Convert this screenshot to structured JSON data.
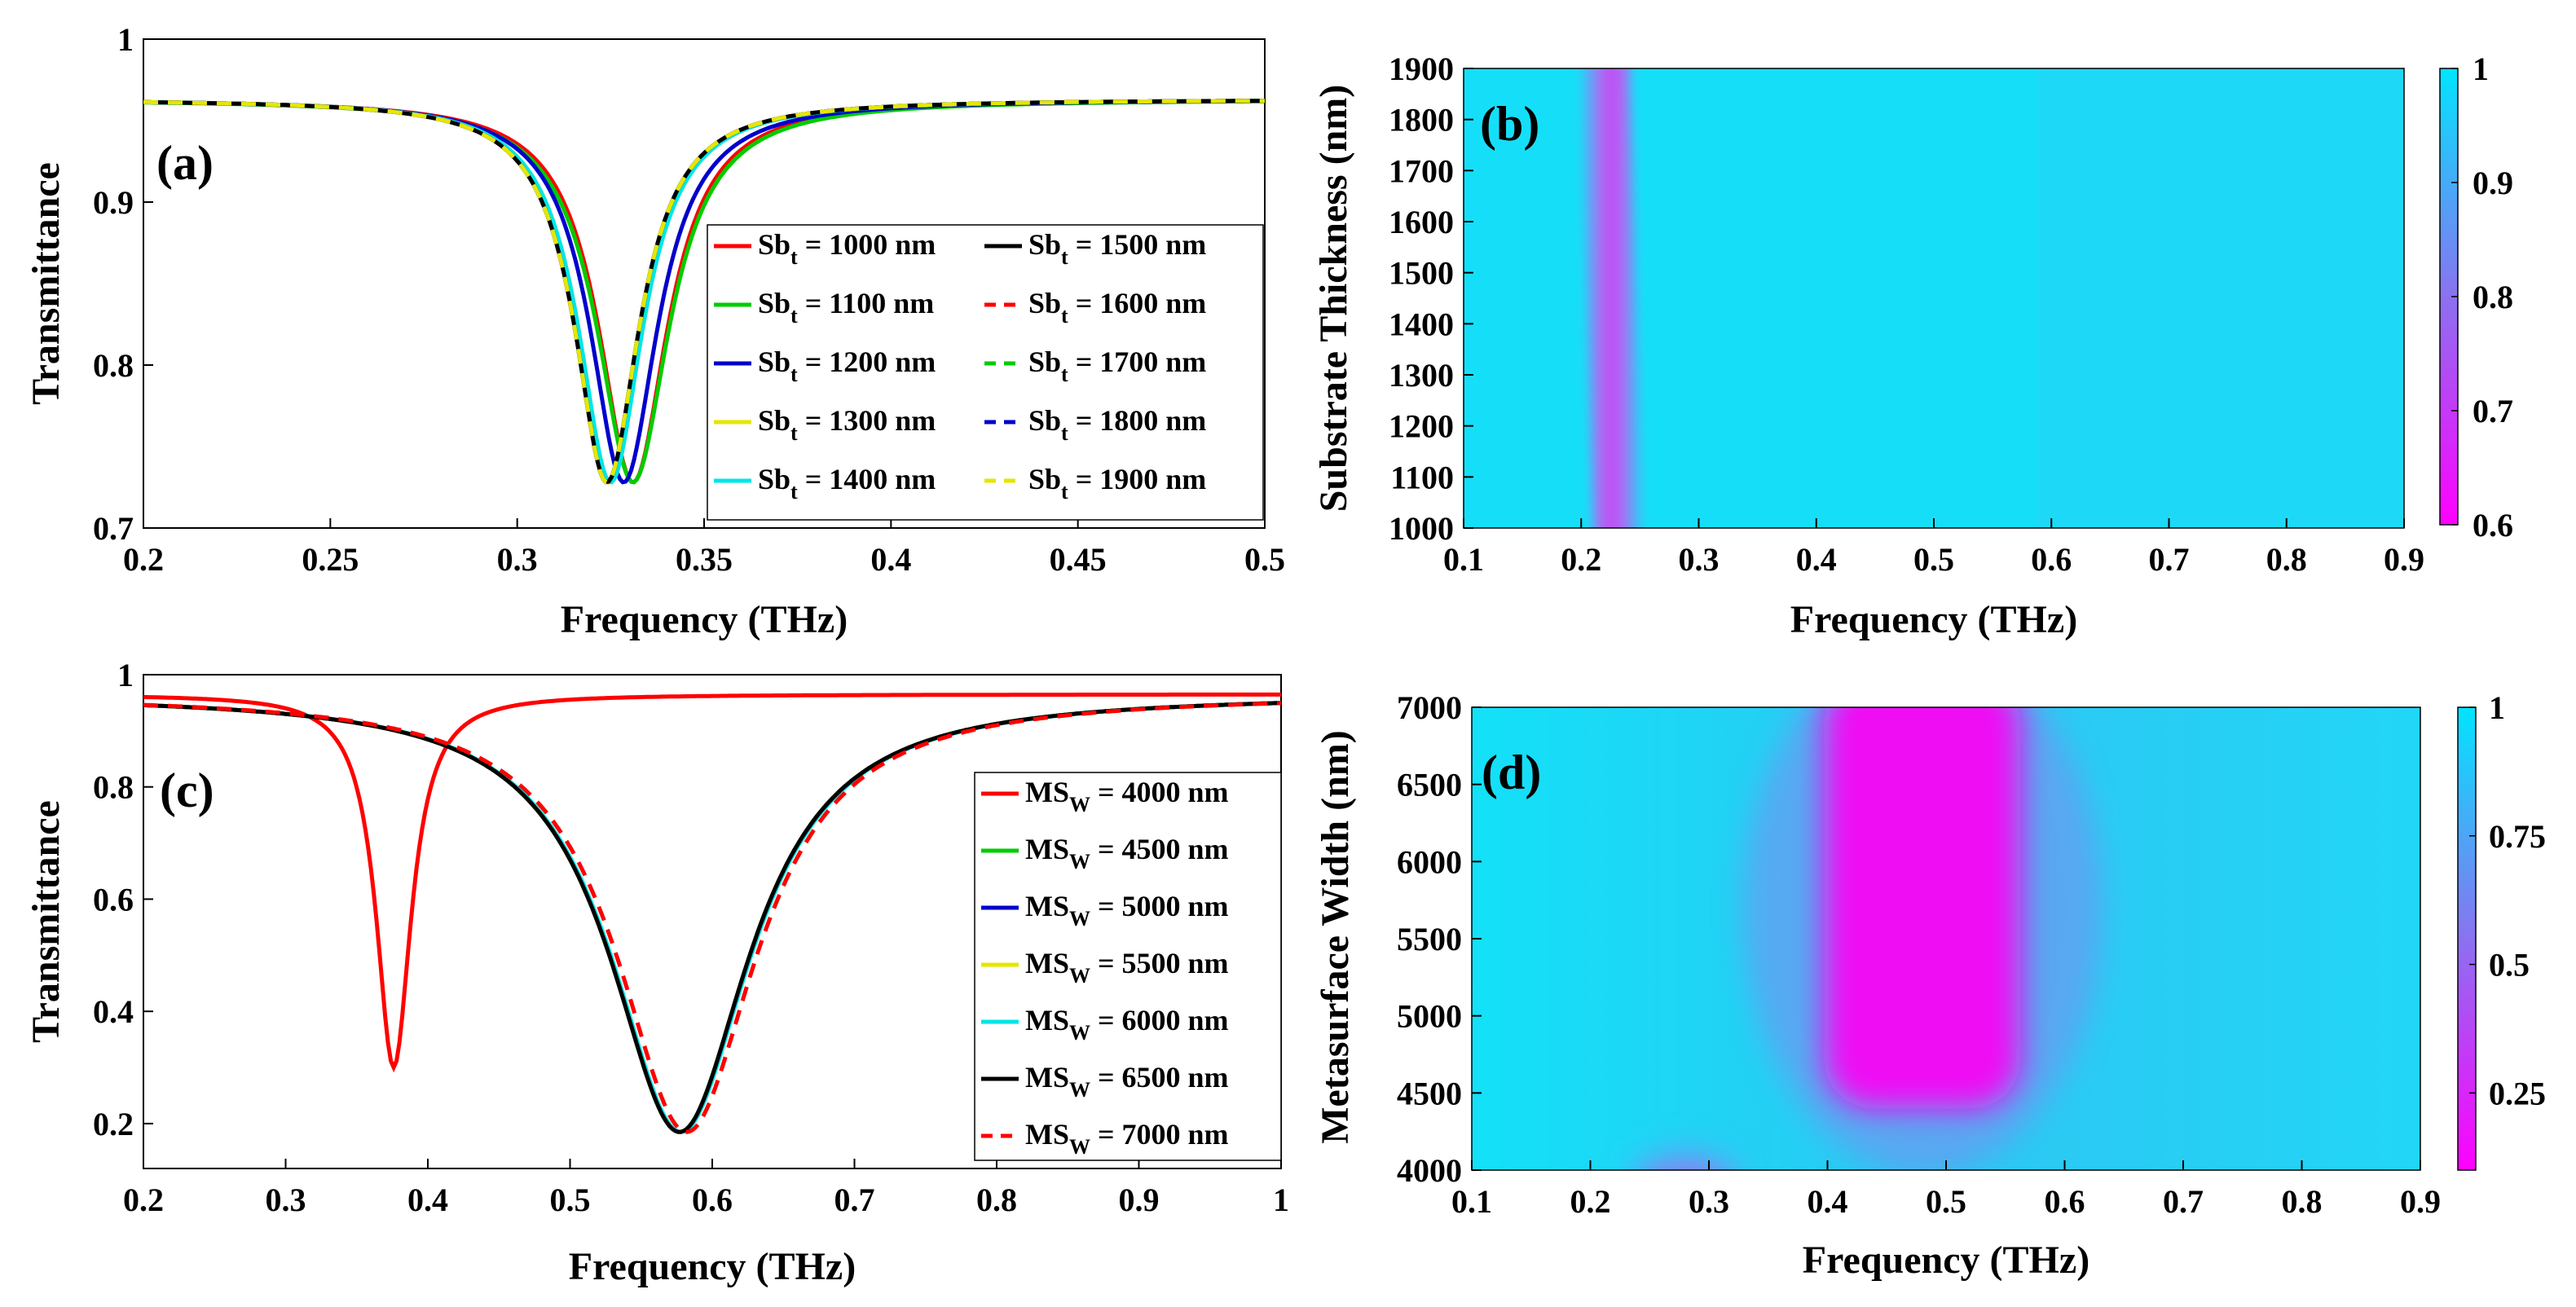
{
  "chart_data": [
    {
      "panel": "(a)",
      "type": "line",
      "xlabel": "Frequency (THz)",
      "ylabel": "Transmittance",
      "xlim": [
        0.2,
        0.5
      ],
      "ylim": [
        0.7,
        1.0
      ],
      "xticks": [
        "0.2",
        "0.25",
        "0.3",
        "0.35",
        "0.4",
        "0.45",
        "0.5"
      ],
      "yticks": [
        "0.7",
        "0.8",
        "0.9",
        "1"
      ],
      "baseline": 0.963,
      "depth": 0.235,
      "series": [
        {
          "prefix": "Sb",
          "sub": "t",
          "rest": " = 1000 nm",
          "color": "#ff0000",
          "dash": false,
          "f0": 0.331,
          "w": 0.0225
        },
        {
          "prefix": "Sb",
          "sub": "t",
          "rest": " = 1100 nm",
          "color": "#00cc00",
          "dash": false,
          "f0": 0.331,
          "w": 0.0235
        },
        {
          "prefix": "Sb",
          "sub": "t",
          "rest": " = 1200 nm",
          "color": "#0000cc",
          "dash": false,
          "f0": 0.3285,
          "w": 0.022
        },
        {
          "prefix": "Sb",
          "sub": "t",
          "rest": " = 1300 nm",
          "color": "#e6e600",
          "dash": false,
          "f0": 0.3245,
          "w": 0.021
        },
        {
          "prefix": "Sb",
          "sub": "t",
          "rest": " = 1400 nm",
          "color": "#00e6e6",
          "dash": false,
          "f0": 0.325,
          "w": 0.021
        },
        {
          "prefix": "Sb",
          "sub": "t",
          "rest": " = 1500 nm",
          "color": "#000000",
          "dash": false,
          "f0": 0.324,
          "w": 0.021
        },
        {
          "prefix": "Sb",
          "sub": "t",
          "rest": " = 1600 nm",
          "color": "#ff0000",
          "dash": true,
          "f0": 0.324,
          "w": 0.021
        },
        {
          "prefix": "Sb",
          "sub": "t",
          "rest": " = 1700 nm",
          "color": "#00cc00",
          "dash": true,
          "f0": 0.324,
          "w": 0.021
        },
        {
          "prefix": "Sb",
          "sub": "t",
          "rest": " = 1800 nm",
          "color": "#0000cc",
          "dash": true,
          "f0": 0.324,
          "w": 0.021
        },
        {
          "prefix": "Sb",
          "sub": "t",
          "rest": " = 1900 nm",
          "color": "#e6e600",
          "dash": true,
          "f0": 0.324,
          "w": 0.021
        }
      ]
    },
    {
      "panel": "(b)",
      "type": "heatmap",
      "xlabel": "Frequency (THz)",
      "ylabel": "Substrate Thickness (nm)",
      "xlim": [
        0.1,
        0.9
      ],
      "ylim": [
        1000,
        1900
      ],
      "xticks": [
        "0.1",
        "0.2",
        "0.3",
        "0.4",
        "0.5",
        "0.6",
        "0.7",
        "0.8",
        "0.9"
      ],
      "yticks": [
        "1000",
        "1100",
        "1200",
        "1300",
        "1400",
        "1500",
        "1600",
        "1700",
        "1800",
        "1900"
      ],
      "colorbar_ticks": [
        "0.6",
        "0.7",
        "0.8",
        "0.9",
        "1"
      ],
      "colorbar_range": [
        0.6,
        1.0
      ],
      "resonance": {
        "f_at_1000": 0.232,
        "f_at_1900": 0.22,
        "min_value": 0.7
      }
    },
    {
      "panel": "(c)",
      "type": "line",
      "xlabel": "Frequency (THz)",
      "ylabel": "Transmittance",
      "xlim": [
        0.2,
        1.0
      ],
      "ylim": [
        0.12,
        1.0
      ],
      "xticks": [
        "0.2",
        "0.3",
        "0.4",
        "0.5",
        "0.6",
        "0.7",
        "0.8",
        "0.9",
        "1"
      ],
      "yticks": [
        "0.2",
        "0.4",
        "0.6",
        "0.8",
        "1"
      ],
      "baseline": 0.965,
      "series": [
        {
          "prefix": "MS",
          "sub": "W",
          "rest": " = 4000 nm",
          "color": "#ff0000",
          "dash": false,
          "f0": 0.376,
          "w": 0.03,
          "depth": 0.665
        },
        {
          "prefix": "MS",
          "sub": "W",
          "rest": " = 4500 nm",
          "color": "#00cc00",
          "dash": false,
          "f0": 0.577,
          "w": 0.12,
          "depth": 0.78
        },
        {
          "prefix": "MS",
          "sub": "W",
          "rest": " = 5000 nm",
          "color": "#0000cc",
          "dash": false,
          "f0": 0.577,
          "w": 0.12,
          "depth": 0.78
        },
        {
          "prefix": "MS",
          "sub": "W",
          "rest": " = 5500 nm",
          "color": "#e6e600",
          "dash": false,
          "f0": 0.577,
          "w": 0.12,
          "depth": 0.78
        },
        {
          "prefix": "MS",
          "sub": "W",
          "rest": " = 6000 nm",
          "color": "#00e6e6",
          "dash": false,
          "f0": 0.578,
          "w": 0.12,
          "depth": 0.78
        },
        {
          "prefix": "MS",
          "sub": "W",
          "rest": " = 6500 nm",
          "color": "#000000",
          "dash": false,
          "f0": 0.577,
          "w": 0.12,
          "depth": 0.78
        },
        {
          "prefix": "MS",
          "sub": "W",
          "rest": " = 7000 nm",
          "color": "#ff0000",
          "dash": true,
          "f0": 0.582,
          "w": 0.12,
          "depth": 0.78
        }
      ]
    },
    {
      "panel": "(d)",
      "type": "heatmap",
      "xlabel": "Frequency (THz)",
      "ylabel": "Metasurface Width (nm)",
      "xlim": [
        0.1,
        0.9
      ],
      "ylim": [
        4000,
        7000
      ],
      "xticks": [
        "0.1",
        "0.2",
        "0.3",
        "0.4",
        "0.5",
        "0.6",
        "0.7",
        "0.8",
        "0.9"
      ],
      "yticks": [
        "4000",
        "4500",
        "5000",
        "5500",
        "6000",
        "6500",
        "7000"
      ],
      "colorbar_ticks": [
        "0.25",
        "0.5",
        "0.75",
        "1"
      ],
      "colorbar_range": [
        0.1,
        1.0
      ],
      "resonance": {
        "main_f": 0.48,
        "main_from": 4400,
        "small_f": 0.28,
        "small_top": 4250
      }
    }
  ],
  "colors": {
    "cyan": "#00e5ff",
    "magenta": "#ff00ff"
  }
}
